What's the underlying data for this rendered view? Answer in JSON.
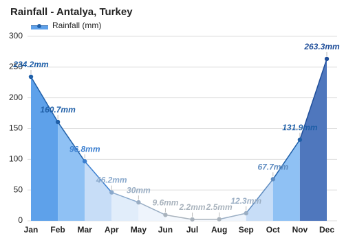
{
  "chart_data": {
    "type": "area",
    "title": "Rainfall - Antalya, Turkey",
    "categories": [
      "Jan",
      "Feb",
      "Mar",
      "Apr",
      "May",
      "Jun",
      "Jul",
      "Aug",
      "Sep",
      "Oct",
      "Nov",
      "Dec"
    ],
    "series": [
      {
        "name": "Rainfall (mm)",
        "color": "#1f5fa8",
        "values": [
          234.2,
          160.7,
          96.8,
          46.2,
          30,
          9.6,
          2.2,
          2.5,
          12.3,
          67.7,
          131.9,
          263.3
        ],
        "value_labels": [
          "234.2mm",
          "160.7mm",
          "96.8mm",
          "46.2mm",
          "30mm",
          "9.6mm",
          "2.2mm",
          "2.5mm",
          "12.3mm",
          "67.7mm",
          "131.9mm",
          "263.3mm"
        ],
        "point_colors": [
          "#1f5fa8",
          "#1f5fa8",
          "#3b7fd0",
          "#8aa9cc",
          "#9aaec4",
          "#a9b3bd",
          "#a9b3bd",
          "#a9b3bd",
          "#9aaec4",
          "#5f8cc0",
          "#1f5fa8",
          "#1f4e9a"
        ],
        "segment_colors": [
          "#5ea1ea",
          "#8fc1f4",
          "#c7ddf7",
          "#e1edfa",
          "#eef4fc",
          "#f4f8fd",
          "#f4f8fd",
          "#eef4fc",
          "#c7ddf7",
          "#8fc1f4",
          "#4f77bd"
        ]
      }
    ],
    "ylim": [
      0,
      300
    ],
    "yticks": [
      0,
      50,
      100,
      150,
      200,
      250,
      300
    ],
    "grid": true
  }
}
